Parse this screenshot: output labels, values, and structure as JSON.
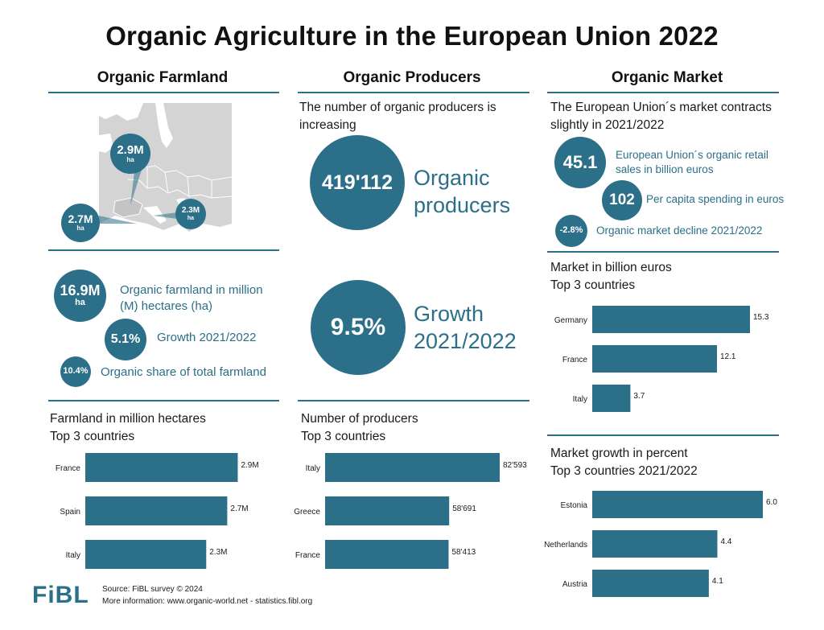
{
  "title": "Organic Agriculture in the European Union 2022",
  "columns": {
    "farmland": "Organic Farmland",
    "producers": "Organic Producers",
    "market": "Organic Market"
  },
  "farmland": {
    "map_labels": [
      {
        "value": "2.9M",
        "unit": "ha"
      },
      {
        "value": "2.7M",
        "unit": "ha"
      },
      {
        "value": "2.3M",
        "unit": "ha"
      }
    ],
    "stats": [
      {
        "value": "16.9M",
        "unit": "ha",
        "label": "Organic farmland in million (M) hectares (ha)"
      },
      {
        "value": "5.1%",
        "label": "Growth 2021/2022"
      },
      {
        "value": "10.4%",
        "label": "Organic share of total farmland"
      }
    ]
  },
  "producers": {
    "intro": "The number of organic producers is increasing",
    "stats": [
      {
        "value": "419'112",
        "label": "Organic producers"
      },
      {
        "value": "9.5%",
        "label": "Growth 2021/2022"
      }
    ]
  },
  "market": {
    "intro": "The European Union´s market contracts slightly in 2021/2022",
    "stats": [
      {
        "value": "45.1",
        "label": "European Union´s organic retail sales in billion euros"
      },
      {
        "value": "102",
        "label": "Per capita spending in euros"
      },
      {
        "value": "-2.8%",
        "label": "Organic market decline 2021/2022"
      }
    ]
  },
  "chart_data": [
    {
      "type": "bar",
      "id": "farmland",
      "title": "Farmland in million hectares",
      "subtitle": "Top 3 countries",
      "categories": [
        "France",
        "Spain",
        "Italy"
      ],
      "values": [
        2.9,
        2.7,
        2.3
      ],
      "value_labels": [
        "2.9M",
        "2.7M",
        "2.3M"
      ],
      "xlim": [
        0,
        3.0
      ],
      "orientation": "horizontal"
    },
    {
      "type": "bar",
      "id": "producers",
      "title": "Number of producers",
      "subtitle": "Top 3 countries",
      "categories": [
        "Italy",
        "Greece",
        "France"
      ],
      "values": [
        82593,
        58691,
        58413
      ],
      "value_labels": [
        "82'593",
        "58'691",
        "58'413"
      ],
      "xlim": [
        0,
        82593
      ],
      "orientation": "horizontal"
    },
    {
      "type": "bar",
      "id": "market",
      "title": "Market in billion euros",
      "subtitle": "Top 3 countries",
      "categories": [
        "Germany",
        "France",
        "Italy"
      ],
      "values": [
        15.3,
        12.1,
        3.7
      ],
      "value_labels": [
        "15.3",
        "12.1",
        "3.7"
      ],
      "xlim": [
        0,
        15.3
      ],
      "orientation": "horizontal"
    },
    {
      "type": "bar",
      "id": "growth",
      "title": "Market growth in percent",
      "subtitle": "Top 3 countries 2021/2022",
      "categories": [
        "Estonia",
        "Netherlands",
        "Austria"
      ],
      "values": [
        6.0,
        4.4,
        4.1
      ],
      "value_labels": [
        "6.0",
        "4.4",
        "4.1"
      ],
      "xlim": [
        0,
        6.0
      ],
      "orientation": "horizontal"
    }
  ],
  "footer": {
    "logo": "FiBL",
    "source": "Source: FiBL survey © 2024",
    "more": "More information: www.organic-world.net - statistics.fibl.org"
  }
}
